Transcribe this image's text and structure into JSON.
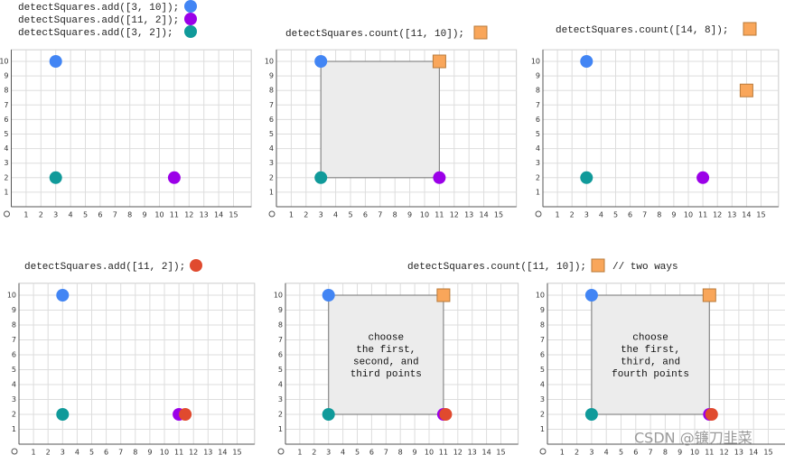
{
  "axes": {
    "xticks": [
      1,
      2,
      3,
      4,
      5,
      6,
      7,
      8,
      9,
      10,
      11,
      12,
      13,
      14,
      15
    ],
    "yticks": [
      1,
      2,
      3,
      4,
      5,
      6,
      7,
      8,
      9,
      10
    ]
  },
  "panels": [
    {
      "captions": [
        {
          "text": "detectSquares.add([3, 10]);",
          "marker": "circle",
          "color": "#4285f4"
        },
        {
          "text": "detectSquares.add([11, 2]);",
          "marker": "circle",
          "color": "#9b00e8"
        },
        {
          "text": "detectSquares.add([3, 2]);",
          "marker": "circle",
          "color": "#109a9a"
        }
      ],
      "points": [
        {
          "x": 3,
          "y": 10,
          "marker": "circle",
          "color": "#4285f4"
        },
        {
          "x": 3,
          "y": 2,
          "marker": "circle",
          "color": "#109a9a"
        },
        {
          "x": 11,
          "y": 2,
          "marker": "circle",
          "color": "#9b00e8"
        }
      ]
    },
    {
      "captions": [
        {
          "text": "detectSquares.count([11, 10]);",
          "marker": "square",
          "color": "#f9a65a"
        }
      ],
      "square": {
        "x1": 3,
        "y1": 2,
        "x2": 11,
        "y2": 10
      },
      "points": [
        {
          "x": 3,
          "y": 10,
          "marker": "circle",
          "color": "#4285f4"
        },
        {
          "x": 3,
          "y": 2,
          "marker": "circle",
          "color": "#109a9a"
        },
        {
          "x": 11,
          "y": 2,
          "marker": "circle",
          "color": "#9b00e8"
        },
        {
          "x": 11,
          "y": 10,
          "marker": "square",
          "color": "#f9a65a"
        }
      ]
    },
    {
      "captions": [
        {
          "text": "detectSquares.count([14, 8]);",
          "marker": "square",
          "color": "#f9a65a"
        }
      ],
      "points": [
        {
          "x": 3,
          "y": 10,
          "marker": "circle",
          "color": "#4285f4"
        },
        {
          "x": 3,
          "y": 2,
          "marker": "circle",
          "color": "#109a9a"
        },
        {
          "x": 11,
          "y": 2,
          "marker": "circle",
          "color": "#9b00e8"
        },
        {
          "x": 14,
          "y": 8,
          "marker": "square",
          "color": "#f9a65a"
        }
      ]
    },
    {
      "captions": [
        {
          "text": "detectSquares.add([11, 2]);",
          "marker": "circle",
          "color": "#e04a2e"
        }
      ],
      "points": [
        {
          "x": 3,
          "y": 10,
          "marker": "circle",
          "color": "#4285f4"
        },
        {
          "x": 3,
          "y": 2,
          "marker": "circle",
          "color": "#109a9a"
        },
        {
          "x": 11,
          "y": 2,
          "marker": "circle",
          "color": "#9b00e8"
        },
        {
          "x": 11,
          "y": 2,
          "marker": "circle",
          "color": "#e04a2e"
        }
      ]
    },
    {
      "captions": [
        {
          "text": "detectSquares.count([11, 10]);",
          "marker": "square",
          "color": "#f9a65a",
          "comment": "// two ways"
        }
      ],
      "square": {
        "x1": 3,
        "y1": 2,
        "x2": 11,
        "y2": 10
      },
      "note": [
        "choose",
        "the first,",
        "second, and",
        "third points"
      ],
      "points": [
        {
          "x": 3,
          "y": 10,
          "marker": "circle",
          "color": "#4285f4"
        },
        {
          "x": 3,
          "y": 2,
          "marker": "circle",
          "color": "#109a9a"
        },
        {
          "x": 11,
          "y": 2,
          "marker": "circle",
          "color": "#9b00e8"
        },
        {
          "x": 11,
          "y": 2,
          "marker": "circle",
          "color": "#e04a2e"
        },
        {
          "x": 11,
          "y": 10,
          "marker": "square",
          "color": "#f9a65a"
        }
      ]
    },
    {
      "captions": [],
      "square": {
        "x1": 3,
        "y1": 2,
        "x2": 11,
        "y2": 10
      },
      "note": [
        "choose",
        "the first,",
        "third, and",
        "fourth points"
      ],
      "points": [
        {
          "x": 3,
          "y": 10,
          "marker": "circle",
          "color": "#4285f4"
        },
        {
          "x": 3,
          "y": 2,
          "marker": "circle",
          "color": "#109a9a"
        },
        {
          "x": 11,
          "y": 2,
          "marker": "circle",
          "color": "#9b00e8"
        },
        {
          "x": 11,
          "y": 2,
          "marker": "circle",
          "color": "#e04a2e"
        },
        {
          "x": 11,
          "y": 10,
          "marker": "square",
          "color": "#f9a65a"
        }
      ]
    }
  ],
  "watermark": "CSDN @镰刀韭菜"
}
